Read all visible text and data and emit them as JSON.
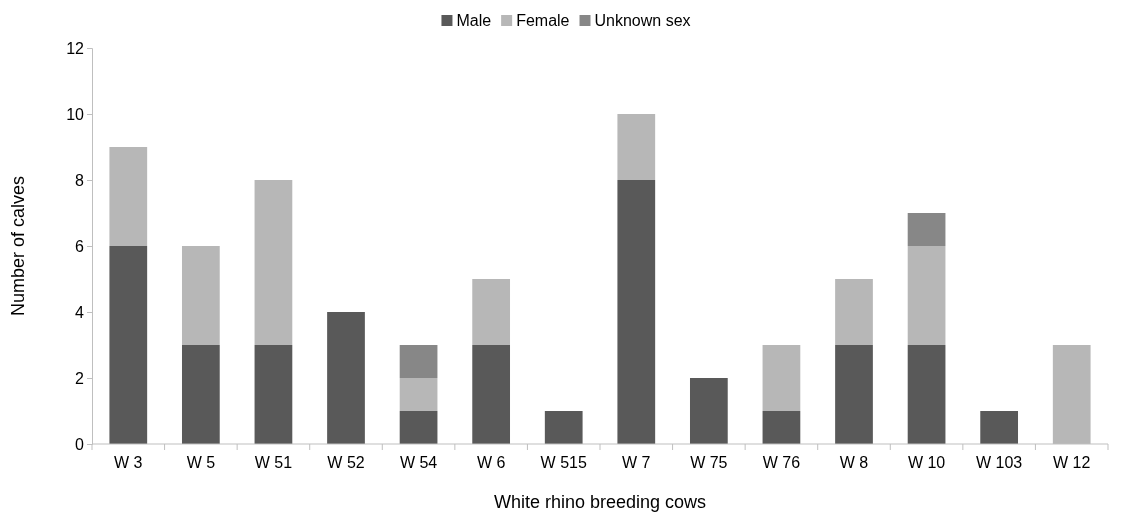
{
  "chart_data": {
    "type": "bar",
    "stacked": true,
    "xlabel": "White rhino breeding cows",
    "ylabel": "Number of calves",
    "categories": [
      "W 3",
      "W 5",
      "W 51",
      "W 52",
      "W 54",
      "W 6",
      "W 515",
      "W 7",
      "W 75",
      "W 76",
      "W 8",
      "W 10",
      "W 103",
      "W 12"
    ],
    "series": [
      {
        "name": "Male",
        "color": "#595959",
        "values": [
          6,
          3,
          3,
          4,
          1,
          3,
          1,
          8,
          2,
          1,
          3,
          3,
          1,
          0
        ]
      },
      {
        "name": "Female",
        "color": "#b7b7b7",
        "values": [
          3,
          3,
          5,
          0,
          1,
          2,
          0,
          2,
          0,
          2,
          2,
          3,
          0,
          3
        ]
      },
      {
        "name": "Unknown sex",
        "color": "#878787",
        "values": [
          0,
          0,
          0,
          0,
          1,
          0,
          0,
          0,
          0,
          0,
          0,
          1,
          0,
          0
        ]
      }
    ],
    "ylim": [
      0,
      12
    ],
    "yticks": [
      0,
      2,
      4,
      6,
      8,
      10,
      12
    ],
    "grid": false,
    "legend": "top"
  }
}
